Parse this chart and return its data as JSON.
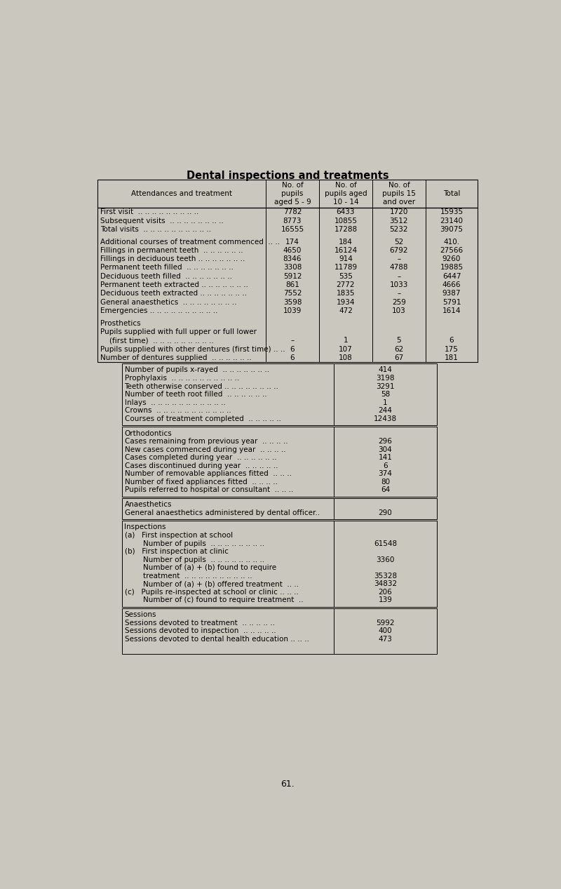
{
  "title": "Dental inspections and treatments",
  "bg_color": "#cac7be",
  "page_number": "61.",
  "main_table": {
    "rows": [
      {
        "label": "First visit  .. .. .. .. .. .. .. .. ..",
        "vals": [
          "7782",
          "6433",
          "1720",
          "15935"
        ]
      },
      {
        "label": "Subsequent visits  .. .. .. .. .. .. .. ..",
        "vals": [
          "8773",
          "10855",
          "3512",
          "23140"
        ]
      },
      {
        "label": "Total visits  .. .. .. .. .. .. .. .. .. ..",
        "vals": [
          "16555",
          "17288",
          "5232",
          "39075"
        ]
      },
      {
        "label": "",
        "vals": [
          "",
          "",
          "",
          ""
        ],
        "spacer": true
      },
      {
        "label": "Additional courses of treatment commenced  .. ..",
        "vals": [
          "174",
          "184",
          "52",
          "410."
        ]
      },
      {
        "label": "Fillings in permanent teeth  .. .. .. .. .. ..",
        "vals": [
          "4650",
          "16124",
          "6792",
          "27566"
        ]
      },
      {
        "label": "Fillings in deciduous teeth .. .. .. .. .. .. ..",
        "vals": [
          "8346",
          "914",
          "–",
          "9260"
        ]
      },
      {
        "label": "Permanent teeth filled  .. .. .. .. .. .. ..",
        "vals": [
          "3308",
          "11789",
          "4788",
          "19885"
        ]
      },
      {
        "label": "Deciduous teeth filled  .. .. .. .. .. .. ..",
        "vals": [
          "5912",
          "535",
          "–",
          "6447"
        ]
      },
      {
        "label": "Permanent teeth extracted .. .. .. .. .. .. ..",
        "vals": [
          "861",
          "2772",
          "1033",
          "4666"
        ]
      },
      {
        "label": "Deciduous teeth extracted .. .. .. .. .. .. ..",
        "vals": [
          "7552",
          "1835",
          "–",
          "9387"
        ]
      },
      {
        "label": "General anaesthetics  .. .. .. .. .. .. .. ..",
        "vals": [
          "3598",
          "1934",
          "259",
          "5791"
        ]
      },
      {
        "label": "Emergencies .. .. .. .. .. .. .. .. .. ..",
        "vals": [
          "1039",
          "472",
          "103",
          "1614"
        ]
      },
      {
        "label": "",
        "vals": [
          "",
          "",
          "",
          ""
        ],
        "spacer": true
      },
      {
        "label": "Prosthetics",
        "vals": [
          "",
          "",
          "",
          ""
        ],
        "header_row": true
      },
      {
        "label": "Pupils supplied with full upper or full lower",
        "vals": [
          "",
          "",
          "",
          ""
        ],
        "header_row": true
      },
      {
        "label": "    (first time)  .. .. .. .. .. .. .. .. ..",
        "vals": [
          "–",
          "1",
          "5",
          "6"
        ]
      },
      {
        "label": "Pupils supplied with other dentures (first time) .. ..",
        "vals": [
          "6",
          "107",
          "62",
          "175"
        ]
      },
      {
        "label": "Number of dentures supplied  .. .. .. .. .. ..",
        "vals": [
          "6",
          "108",
          "67",
          "181"
        ]
      }
    ]
  },
  "sub_table1": {
    "rows": [
      {
        "label": "Number of pupils x-rayed  .. .. .. .. .. .. ..",
        "val": "414"
      },
      {
        "label": "Prophylaxis  .. .. .. .. .. .. .. .. .. ..",
        "val": "3198"
      },
      {
        "label": "Teeth otherwise conserved .. .. .. .. .. .. .. ..",
        "val": "3291"
      },
      {
        "label": "Number of teeth root filled  .. .. .. .. .. ..",
        "val": "58"
      },
      {
        "label": "Inlays  .. .. .. .. .. .. .. .. .. .. ..",
        "val": "1"
      },
      {
        "label": "Crowns  .. .. .. .. .. .. .. .. .. .. ..",
        "val": "244"
      },
      {
        "label": "Courses of treatment completed  .. .. .. .. ..",
        "val": "12438"
      }
    ]
  },
  "sub_table2": {
    "header": "Orthodontics",
    "rows": [
      {
        "label": "Cases remaining from previous year  .. .. .. ..",
        "val": "296"
      },
      {
        "label": "New cases commenced during year  .. .. .. ..",
        "val": "304"
      },
      {
        "label": "Cases completed during year  .. .. .. .. .. ..",
        "val": "141"
      },
      {
        "label": "Cases discontinued during year  .. .. .. .. ..",
        "val": "6"
      },
      {
        "label": "Number of removable appliances fitted  .. .. ..",
        "val": "374"
      },
      {
        "label": "Number of fixed appliances fitted  .. .. .. ..",
        "val": "80"
      },
      {
        "label": "Pupils referred to hospital or consultant  .. .. ..",
        "val": "64"
      }
    ]
  },
  "sub_table3": {
    "header": "Anaesthetics",
    "rows": [
      {
        "label": "General anaesthetics administered by dental officer..",
        "val": "290"
      }
    ]
  },
  "sub_table4": {
    "header": "Inspections",
    "rows": [
      {
        "label": "(a)   First inspection at school",
        "val": ""
      },
      {
        "label": "        Number of pupils  .. .. .. .. .. .. .. ..",
        "val": "61548"
      },
      {
        "label": "(b)   First inspection at clinic",
        "val": ""
      },
      {
        "label": "        Number of pupils  .. .. .. .. .. .. .. ..",
        "val": "3360"
      },
      {
        "label": "        Number of (a) + (b) found to require",
        "val": ""
      },
      {
        "label": "        treatment  .. .. .. .. .. .. .. .. .. ..",
        "val": "35328"
      },
      {
        "label": "        Number of (a) + (b) offered treatment  .. ..",
        "val": "34832"
      },
      {
        "label": "(c)   Pupils re-inspected at school or clinic .. .. ..",
        "val": "206"
      },
      {
        "label": "        Number of (c) found to require treatment  ..",
        "val": "139"
      }
    ]
  },
  "sub_table5": {
    "header": "Sessions",
    "rows": [
      {
        "label": "Sessions devoted to treatment  .. .. .. .. ..",
        "val": "5992"
      },
      {
        "label": "Sessions devoted to inspection  .. .. .. .. ..",
        "val": "400"
      },
      {
        "label": "Sessions devoted to dental health education .. .. ..",
        "val": "473"
      }
    ]
  }
}
